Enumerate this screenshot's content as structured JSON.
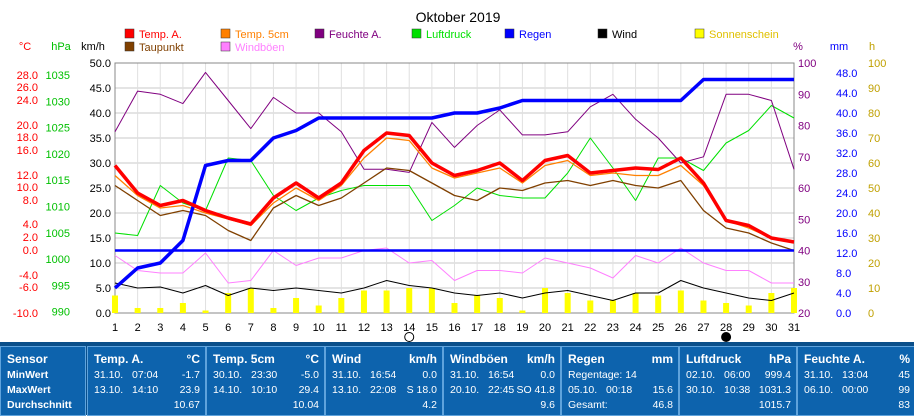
{
  "chart_data": {
    "type": "line",
    "title": "Oktober 2019",
    "x": [
      1,
      2,
      3,
      4,
      5,
      6,
      7,
      8,
      9,
      10,
      11,
      12,
      13,
      14,
      15,
      16,
      17,
      18,
      19,
      20,
      21,
      22,
      23,
      24,
      25,
      26,
      27,
      28,
      29,
      30,
      31
    ],
    "legend": [
      {
        "label": "Temp. A.",
        "color": "#ff0000"
      },
      {
        "label": "Temp. 5cm",
        "color": "#ff8000"
      },
      {
        "label": "Feuchte A.",
        "color": "#800080"
      },
      {
        "label": "Luftdruck",
        "color": "#00e000"
      },
      {
        "label": "Regen",
        "color": "#0000ff"
      },
      {
        "label": "Wind",
        "color": "#000000"
      },
      {
        "label": "Sonnenschein",
        "color": "#ffff00"
      },
      {
        "label": "Taupunkt",
        "color": "#804000"
      },
      {
        "label": "Windböen",
        "color": "#ff80ff"
      }
    ],
    "axes": {
      "temp_c": {
        "label": "°C",
        "ticks": [
          28.0,
          26.0,
          24.0,
          20.0,
          18.0,
          16.0,
          12.0,
          10.0,
          8.0,
          4.0,
          2.0,
          0.0,
          -4.0,
          -6.0,
          -10.0
        ]
      },
      "pressure_hpa": {
        "label": "hPa",
        "ticks": [
          1035,
          1030,
          1025,
          1020,
          1015,
          1010,
          1005,
          1000,
          995,
          990
        ]
      },
      "wind_kmh": {
        "label": "km/h",
        "ticks": [
          50.0,
          45.0,
          40.0,
          35.0,
          30.0,
          25.0,
          20.0,
          15.0,
          10.0,
          5.0,
          0.0
        ],
        "range": [
          0,
          50
        ]
      },
      "humidity_pct": {
        "label": "%",
        "ticks": [
          100,
          90,
          80,
          70,
          60,
          50,
          40,
          30,
          20
        ],
        "range": [
          20,
          100
        ]
      },
      "rain_mm": {
        "label": "mm",
        "ticks": [
          48.0,
          44.0,
          40.0,
          36.0,
          32.0,
          28.0,
          24.0,
          20.0,
          16.0,
          12.0,
          8.0,
          4.0,
          0.0
        ],
        "range": [
          0,
          50
        ]
      },
      "sun_h": {
        "label": "h",
        "ticks": [
          100,
          90,
          80,
          70,
          60,
          50,
          40,
          30,
          20,
          10,
          0
        ],
        "range": [
          0,
          100
        ]
      }
    },
    "series": [
      {
        "name": "Temp. A.",
        "axis": "wind_kmh",
        "color": "#ff0000",
        "values": [
          29.5,
          24.0,
          21.5,
          22.5,
          20.5,
          19.0,
          17.8,
          23.0,
          26.0,
          23.0,
          26.0,
          32.5,
          36.0,
          35.5,
          30.0,
          27.5,
          28.5,
          30.0,
          26.5,
          30.5,
          31.5,
          28.0,
          28.5,
          29.0,
          28.7,
          31.0,
          26.0,
          18.5,
          17.5,
          15.0,
          14.2
        ]
      },
      {
        "name": "Temp. 5cm",
        "axis": "wind_kmh",
        "color": "#ff8000",
        "values": [
          27.5,
          23.5,
          21.0,
          21.5,
          20.0,
          18.8,
          17.5,
          22.0,
          25.0,
          22.5,
          25.5,
          31.0,
          35.0,
          34.5,
          29.0,
          27.0,
          28.0,
          29.0,
          26.0,
          29.5,
          30.5,
          27.5,
          28.0,
          27.5,
          27.5,
          29.5,
          25.5,
          18.5,
          17.0,
          15.0,
          14.0
        ]
      },
      {
        "name": "Taupunkt",
        "axis": "wind_kmh",
        "color": "#804000",
        "values": [
          25.5,
          22.5,
          19.5,
          20.5,
          19.5,
          16.5,
          14.5,
          21.0,
          23.5,
          21.5,
          23.0,
          26.0,
          29.0,
          28.5,
          26.0,
          23.5,
          22.5,
          25.0,
          24.5,
          26.0,
          26.5,
          25.5,
          26.5,
          25.5,
          25.0,
          26.5,
          20.5,
          17.0,
          16.0,
          14.0,
          12.5
        ]
      },
      {
        "name": "Feuchte A.",
        "axis": "humidity_pct",
        "color": "#800080",
        "values": [
          78,
          91,
          90,
          87,
          97,
          88,
          79,
          89,
          84,
          84,
          78,
          66,
          66,
          65,
          81,
          73,
          80,
          85,
          77,
          77,
          78,
          86,
          90,
          82,
          76,
          68,
          70,
          90,
          90,
          88,
          66
        ]
      },
      {
        "name": "Luftdruck",
        "axis": "wind_kmh",
        "color": "#00e000",
        "values": [
          16.0,
          15.5,
          25.5,
          22.0,
          20.5,
          31.0,
          30.5,
          23.5,
          20.5,
          23.0,
          24.5,
          25.5,
          25.5,
          25.5,
          18.5,
          21.5,
          25.0,
          23.5,
          23.0,
          23.0,
          28.0,
          35.0,
          29.0,
          22.5,
          31.0,
          31.0,
          28.5,
          34.0,
          36.5,
          41.5,
          39.0
        ]
      },
      {
        "name": "Regen",
        "axis": "rain_mm",
        "color": "#0000ff",
        "values": [
          5.0,
          9.0,
          10.0,
          14.5,
          29.5,
          30.5,
          30.5,
          35.0,
          36.5,
          39.0,
          39.0,
          39.0,
          39.0,
          39.0,
          39.0,
          40.0,
          40.0,
          41.0,
          42.5,
          42.5,
          42.5,
          42.5,
          42.5,
          42.5,
          42.5,
          42.5,
          46.7,
          46.7,
          46.7,
          46.7,
          46.7
        ]
      },
      {
        "name": "Regen-Grundlinie",
        "axis": "rain_mm",
        "color": "#0000ff",
        "values": [
          12.5,
          12.5,
          12.5,
          12.5,
          12.5,
          12.5,
          12.5,
          12.5,
          12.5,
          12.5,
          12.5,
          12.5,
          12.5,
          12.5,
          12.5,
          12.5,
          12.5,
          12.5,
          12.5,
          12.5,
          12.5,
          12.5,
          12.5,
          12.5,
          12.5,
          12.5,
          12.5,
          12.5,
          12.5,
          12.5,
          12.5
        ]
      },
      {
        "name": "Wind",
        "axis": "wind_kmh",
        "color": "#000000",
        "values": [
          6.0,
          5.0,
          5.2,
          4.0,
          5.5,
          3.5,
          5.0,
          4.5,
          5.0,
          4.5,
          4.0,
          5.0,
          6.5,
          5.5,
          5.0,
          4.0,
          3.5,
          4.0,
          3.0,
          4.0,
          4.5,
          3.5,
          2.5,
          4.0,
          4.0,
          6.5,
          5.0,
          4.0,
          3.0,
          2.5,
          4.0
        ]
      },
      {
        "name": "Windböen",
        "axis": "wind_kmh",
        "color": "#ff80ff",
        "values": [
          11.5,
          8.5,
          8.0,
          8.0,
          12.0,
          6.0,
          6.5,
          12.5,
          9.5,
          11.0,
          11.0,
          12.5,
          13.0,
          10.0,
          10.5,
          6.5,
          8.5,
          8.5,
          8.0,
          11.0,
          10.0,
          9.0,
          7.0,
          11.5,
          10.0,
          13.0,
          10.0,
          8.5,
          8.5,
          6.0,
          6.0
        ]
      },
      {
        "name": "Sonnenschein",
        "axis": "sun_h",
        "color": "#ffff00",
        "values": [
          7,
          2,
          2,
          4,
          1,
          8,
          10,
          2,
          6,
          3,
          6,
          9,
          9,
          10,
          10,
          4,
          7,
          6,
          1,
          10,
          8,
          5,
          5,
          8,
          7,
          9,
          5,
          4,
          3,
          8,
          10
        ]
      }
    ],
    "moon_markers": [
      {
        "x": 14,
        "phase": "full"
      },
      {
        "x": 28,
        "phase": "new"
      }
    ]
  },
  "stats": [
    {
      "title": "Sensor",
      "rows": [
        "MinWert",
        "MaxWert",
        "Durchschnitt"
      ]
    },
    {
      "title": "Temp. A.",
      "unit": "°C",
      "rows": [
        [
          "31.10.",
          "07:04",
          "-1.7"
        ],
        [
          "13.10.",
          "14:10",
          "23.9"
        ],
        [
          "",
          "",
          "10.67"
        ]
      ]
    },
    {
      "title": "Temp. 5cm",
      "unit": "°C",
      "rows": [
        [
          "30.10.",
          "23:30",
          "-5.0"
        ],
        [
          "14.10.",
          "10:10",
          "29.4"
        ],
        [
          "",
          "",
          "10.04"
        ]
      ]
    },
    {
      "title": "Wind",
      "unit": "km/h",
      "rows": [
        [
          "31.10.",
          "16:54",
          "0.0"
        ],
        [
          "13.10.",
          "22:08",
          "S 18.0"
        ],
        [
          "",
          "",
          "4.2"
        ]
      ]
    },
    {
      "title": "Windböen",
      "unit": "km/h",
      "rows": [
        [
          "31.10.",
          "16:54",
          "0.0"
        ],
        [
          "20.10.",
          "22:45",
          "SO 41.8"
        ],
        [
          "",
          "",
          "9.6"
        ]
      ]
    },
    {
      "title": "Regen",
      "unit": "mm",
      "rows": [
        [
          "Regentage: 14",
          "",
          ""
        ],
        [
          "05.10.",
          "00:18",
          "15.6"
        ],
        [
          "Gesamt:",
          "",
          "46.8"
        ]
      ]
    },
    {
      "title": "Luftdruck",
      "unit": "hPa",
      "rows": [
        [
          "02.10.",
          "06:00",
          "999.4"
        ],
        [
          "30.10.",
          "10:38",
          "1031.3"
        ],
        [
          "",
          "",
          "1015.7"
        ]
      ]
    },
    {
      "title": "Feuchte A.",
      "unit": "%",
      "rows": [
        [
          "31.10.",
          "13:04",
          "45"
        ],
        [
          "06.10.",
          "00:00",
          "99"
        ],
        [
          "",
          "",
          "83"
        ]
      ]
    }
  ]
}
